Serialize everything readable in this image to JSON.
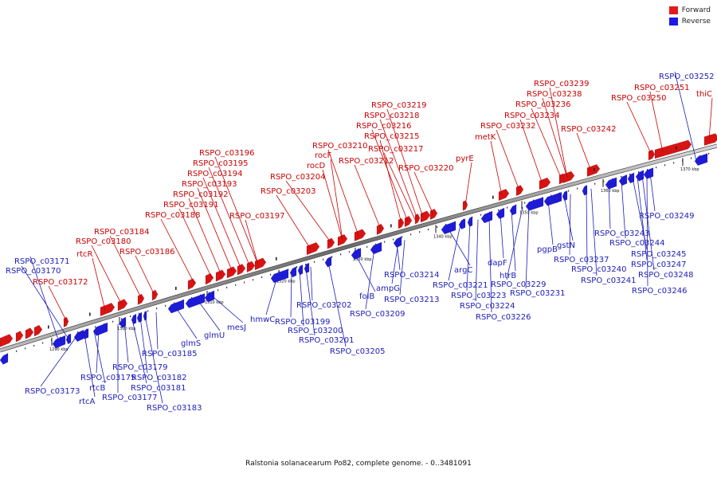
{
  "legend": {
    "forward_label": "Forward",
    "reverse_label": "Reverse",
    "forward_color": "#e31a1a",
    "reverse_color": "#1a1ae3"
  },
  "caption": "Ralstonia solanacearum Po82, complete genome. - 0..3481091",
  "ticks": [
    "1290 kbp",
    "1300 kbp",
    "1310 kbp",
    "1320 kbp",
    "1330 kbp",
    "1340 kbp",
    "1350 kbp",
    "1360 kbp",
    "1370 kbp"
  ],
  "forward_genes": [
    "RSPO_c03172",
    "rtcR",
    "RSPO_c03180",
    "RSPO_c03184",
    "RSPO_c03186",
    "RSPO_c03188",
    "RSPO_c03191",
    "RSPO_c03192",
    "RSPO_c03193",
    "RSPO_c03194",
    "RSPO_c03195",
    "RSPO_c03196",
    "RSPO_c03197",
    "RSPO_c03203",
    "RSPO_c03204",
    "rocD",
    "rocF",
    "RSPO_c03210",
    "RSPO_c03212",
    "RSPO_c03215",
    "RSPO_c03216",
    "RSPO_c03217",
    "RSPO_c03218",
    "RSPO_c03219",
    "RSPO_c03220",
    "pyrE",
    "metK",
    "RSPO_c03232",
    "RSPO_c03234",
    "RSPO_c03236",
    "RSPO_c03238",
    "RSPO_c03239",
    "RSPO_c03242",
    "RSPO_c03250",
    "RSPO_c03251",
    "thiC"
  ],
  "reverse_genes": [
    "RSPO_c03171",
    "RSPO_c03170",
    "RSPO_c03173",
    "rtcA",
    "rtcB",
    "RSPO_c03175",
    "RSPO_c03177",
    "RSPO_c03179",
    "RSPO_c03181",
    "RSPO_c03182",
    "RSPO_c03183",
    "RSPO_c03185",
    "glmS",
    "glmU",
    "mesJ",
    "hmwC",
    "RSPO_c03199",
    "RSPO_c03200",
    "RSPO_c03201",
    "RSPO_c03202",
    "RSPO_c03205",
    "folB",
    "RSPO_c03209",
    "ampG",
    "RSPO_c03213",
    "RSPO_c03214",
    "argC",
    "RSPO_c03221",
    "RSPO_c03223",
    "RSPO_c03224",
    "RSPO_c03226",
    "dapF",
    "htrB",
    "RSPO_c03229",
    "RSPO_c03231",
    "pgpB",
    "gstN",
    "RSPO_c03237",
    "RSPO_c03240",
    "RSPO_c03241",
    "RSPO_c03243",
    "RSPO_c03244",
    "RSPO_c03245",
    "RSPO_c03247",
    "RSPO_c03248",
    "RSPO_c03246",
    "RSPO_c03249",
    "RSPO_c03252"
  ]
}
